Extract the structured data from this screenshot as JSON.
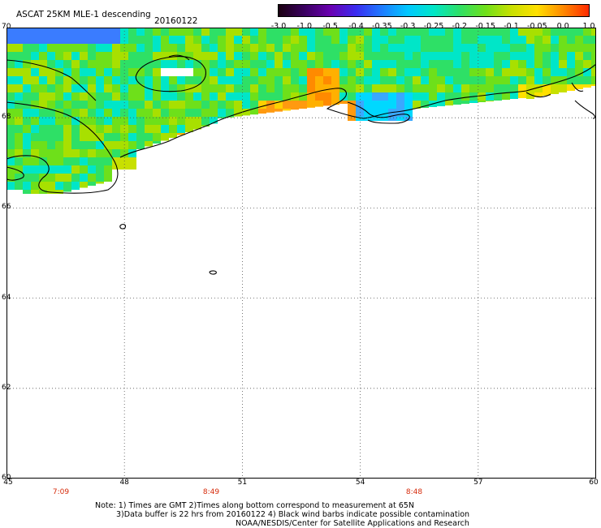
{
  "header": {
    "title": "ASCAT 25KM MLE-1 descending",
    "date": "20160122"
  },
  "colorbar": {
    "labels": [
      "-3.0",
      "-1.0",
      "-0.5",
      "-0.4",
      "-0.35",
      "-0.3",
      "-0.25",
      "-0.2",
      "-0.15",
      "-0.1",
      "-0.05",
      "0.0",
      "1.0"
    ],
    "colors": [
      "#1a0010",
      "#3a0060",
      "#6a00b0",
      "#3a2cf0",
      "#1e7cff",
      "#00c8ff",
      "#00e6c8",
      "#2ee066",
      "#6ee01a",
      "#c8e000",
      "#ffe000",
      "#ff8a00",
      "#ff2a00"
    ]
  },
  "axes": {
    "lat_labels": [
      "70",
      "68",
      "66",
      "64",
      "62",
      "60"
    ],
    "lon_labels": [
      "45",
      "48",
      "51",
      "54",
      "57",
      "60"
    ],
    "times": [
      "7:09",
      "8:49",
      "8:48"
    ]
  },
  "notes": {
    "line1": "Note: 1) Times are GMT 2)Times along bottom correspond to measurement at 65N",
    "line2": "3)Data buffer is 22 hrs from 20160122 4) Black wind barbs indicate possible contamination",
    "line3": "NOAA/NESDIS/Center for Satellite Applications and Research"
  }
}
